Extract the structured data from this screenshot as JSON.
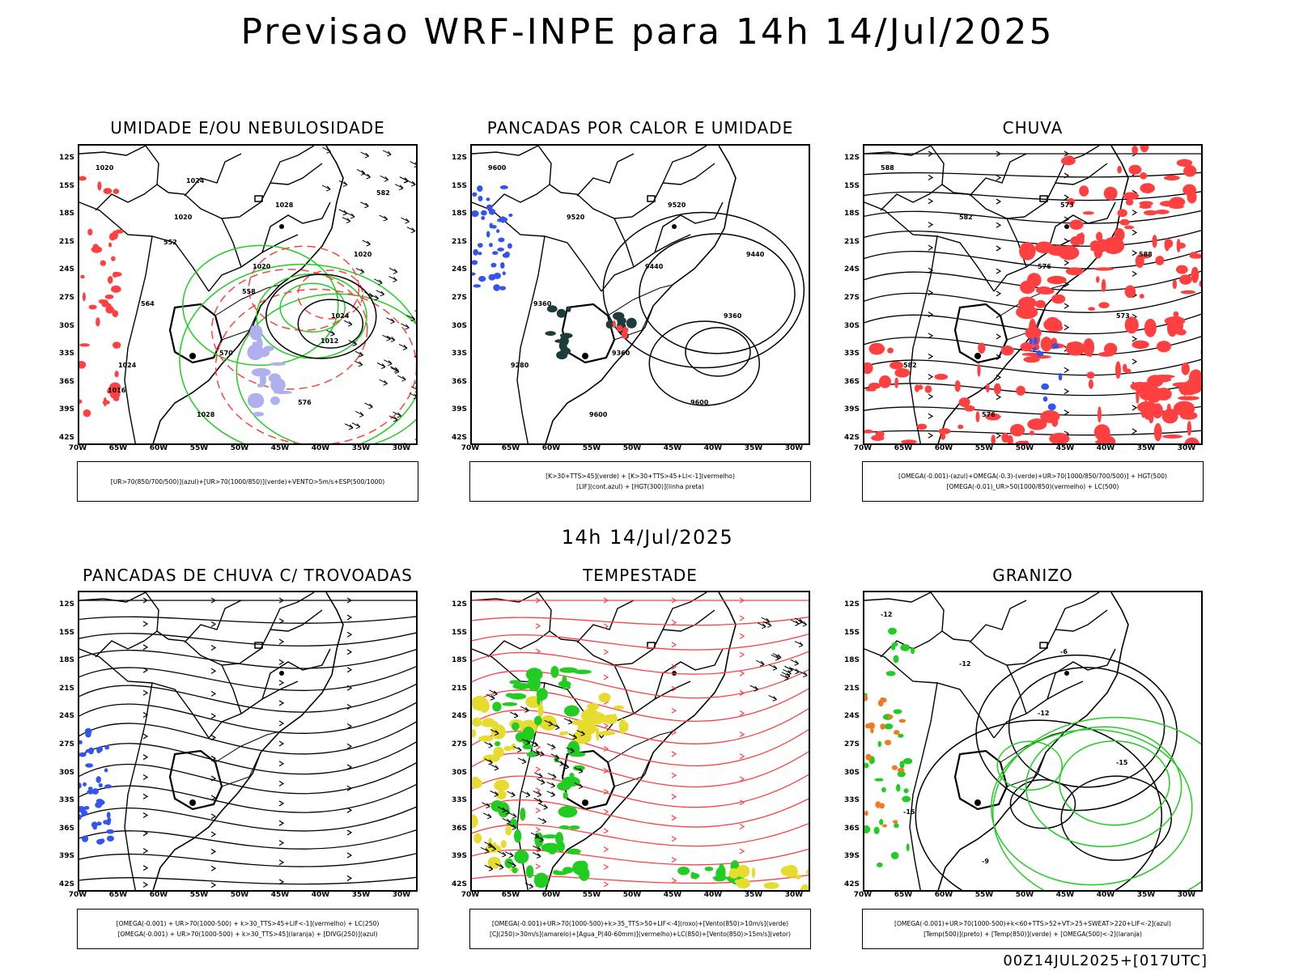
{
  "header": {
    "title": "Previsao WRF-INPE  para 14h 14/Jul/2025",
    "mid_title": "14h 14/Jul/2025",
    "footer": "00Z14JUL2025+[017UTC]"
  },
  "axes": {
    "lat_labels": [
      "12S",
      "15S",
      "18S",
      "21S",
      "24S",
      "27S",
      "30S",
      "33S",
      "36S",
      "39S",
      "42S"
    ],
    "lon_labels": [
      "70W",
      "65W",
      "60W",
      "55W",
      "50W",
      "45W",
      "40W",
      "35W",
      "30W"
    ]
  },
  "panels": [
    {
      "title": "UMIDADE E/OU NEBULOSIDADE",
      "legend": [
        "[UR>70(850/700/500)](azul)+[UR>70(1000/850)](verde)+VENTO>5m/s+ESP(500/1000)"
      ],
      "contour_labels": [
        "1020",
        "1020",
        "1020",
        "1024",
        "1024",
        "1028",
        "1028",
        "1020",
        "564",
        "570",
        "576",
        "582",
        "552",
        "558",
        "1012",
        "1016",
        "1024"
      ]
    },
    {
      "title": "PANCADAS POR CALOR E UMIDADE",
      "legend": [
        "[K>30+TTS>45](verde) + [K>30+TTS>45+LI<-1](vermelho)",
        "[LIF](cont.azul) + [HGT(300)](linha preta)"
      ],
      "contour_labels": [
        "9600",
        "9520",
        "9440",
        "9360",
        "9280",
        "9600",
        "9520",
        "9440",
        "9360",
        "9360",
        "9600"
      ]
    },
    {
      "title": "CHUVA",
      "legend": [
        "[OMEGA(-0.001)-(azul)+OMEGA(-0.3)-(verde)+UR>70(1000/850/700/500)] + HGT(500)",
        "[OMEGA(-0.01)_UR>50(1000/850)(vermelho) + LC(500)"
      ],
      "contour_labels": [
        "588",
        "582",
        "576",
        "573",
        "582",
        "576",
        "573",
        "588"
      ]
    },
    {
      "title": "PANCADAS DE CHUVA C/ TROVOADAS",
      "legend": [
        "[OMEGA(-0.001) + UR>70(1000-500) + k>30_TTS>45+LIF<-1](vermelho) + LC(250)",
        "[OMEGA(-0.001) + UR>70(1000-500) + k>30_TTS>45](laranja) + [DIVG(250)](azul)"
      ],
      "contour_labels": []
    },
    {
      "title": "TEMPESTADE",
      "legend": [
        "[OMEGA(-0.001)+UR>70(1000-500)+k>35_TTS>50+LIF<-4](roxo)+[Vento(850)>10m/s](verde)",
        "[CJ(250)>30m/s](amarelo)+[Agua_P(40-60mm)](vermelho)+LC(850)+[Vento(850)>15m/s](vetor)"
      ],
      "contour_labels": []
    },
    {
      "title": "GRANIZO",
      "legend": [
        "[OMEGA(-0.001)+UR>70(1000-500)+k<60+TTS>52+VT>25+SWEAT>220+LIF<-2](azul)",
        "[Temp(500)](preto) + [Temp(850)](verde) + [OMEGA(500)<-2](laranja)"
      ],
      "contour_labels": [
        "-12",
        "-12",
        "-12",
        "-15",
        "-15",
        "-9",
        "-6"
      ]
    }
  ],
  "colors": {
    "green": "#22cc22",
    "red": "#ff4040",
    "blue": "#3355ee",
    "lavender": "#b0b0f0",
    "yellow": "#e6dc30",
    "darkteal": "#1e3c3c",
    "orange": "#f07a20"
  }
}
